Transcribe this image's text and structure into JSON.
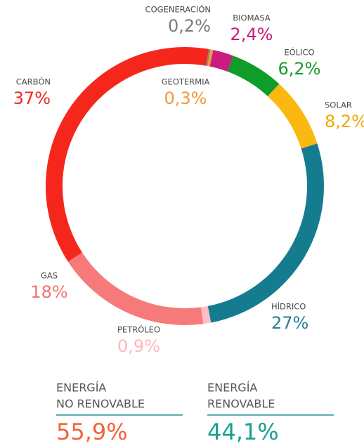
{
  "chart_data": {
    "type": "donut",
    "categories": [
      "COGENERACIÓN",
      "GEOTERMIA",
      "BIOMASA",
      "EÓLICO",
      "SOLAR",
      "HÍDRICO",
      "PETRÓLEO",
      "GAS",
      "CARBÓN"
    ],
    "values": [
      0.2,
      0.3,
      2.4,
      6.2,
      8.2,
      27,
      0.9,
      18,
      37
    ],
    "value_labels": [
      "0,2%",
      "0,3%",
      "2,4%",
      "6,2%",
      "8,2%",
      "27%",
      "0,9%",
      "18%",
      "37%"
    ],
    "colors": [
      "#8a8a8a",
      "#f59a2c",
      "#cc1b7c",
      "#0d9d28",
      "#fbb811",
      "#157b8f",
      "#fcc0c4",
      "#f77a7a",
      "#f5271d"
    ],
    "label_colors": [
      "#7a7a7a",
      "#f09a3a",
      "#cc1b7c",
      "#1a9a2a",
      "#f0a800",
      "#2a7d95",
      "#fcb8bd",
      "#f47272",
      "#f5271d"
    ]
  },
  "summary": [
    {
      "label_lines": [
        "ENERGÍA",
        "NO RENOVABLE"
      ],
      "value": 55.9,
      "value_label": "55,9%",
      "color": "#f4633a"
    },
    {
      "label_lines": [
        "ENERGÍA",
        "RENOVABLE"
      ],
      "value": 44.1,
      "value_label": "44,1%",
      "color": "#1a9e8f"
    }
  ]
}
